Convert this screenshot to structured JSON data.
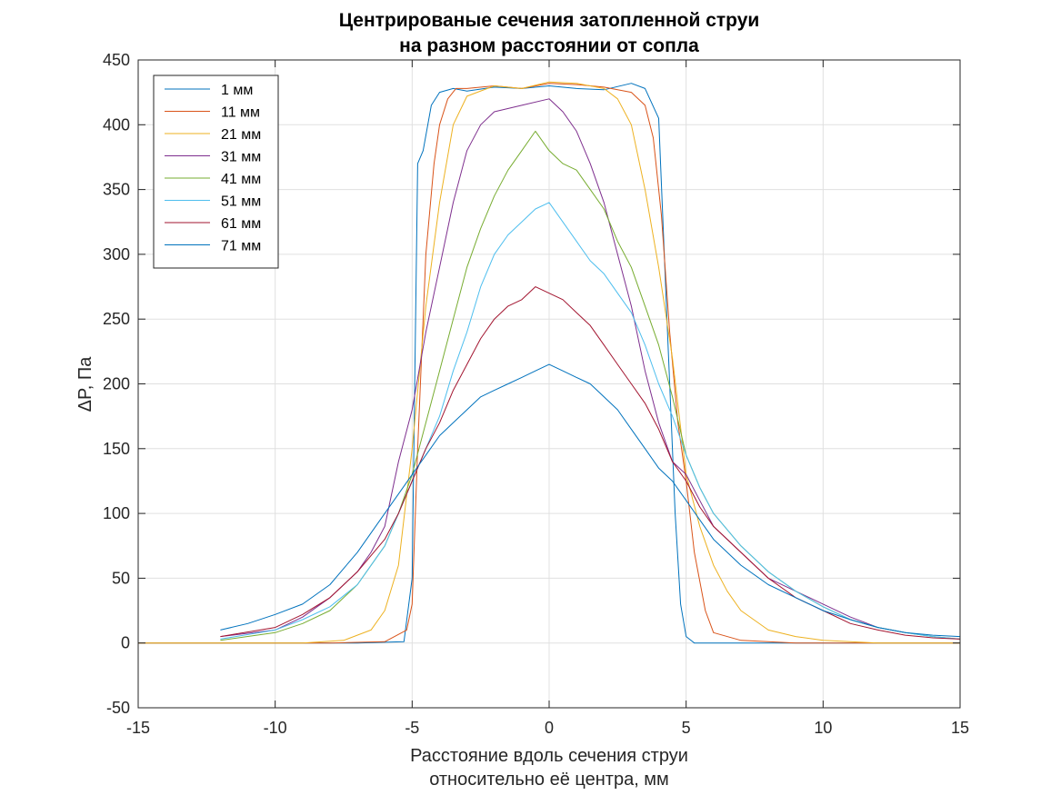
{
  "chart_data": {
    "type": "line",
    "title": [
      "Центрированые сечения затопленной струи",
      "на разном расстоянии от сопла"
    ],
    "xlabel": [
      "Расстояние вдоль сечения струи",
      "относительно её центра, мм"
    ],
    "ylabel": "ΔP, Па",
    "xlim": [
      -15,
      15
    ],
    "ylim": [
      -50,
      450
    ],
    "xticks": [
      -15,
      -10,
      -5,
      0,
      5,
      10,
      15
    ],
    "yticks": [
      -50,
      0,
      50,
      100,
      150,
      200,
      250,
      300,
      350,
      400,
      450
    ],
    "xtick_labels": [
      "-15",
      "-10",
      "-5",
      "0",
      "5",
      "10",
      "15"
    ],
    "ytick_labels": [
      "-50",
      "0",
      "50",
      "100",
      "150",
      "200",
      "250",
      "300",
      "350",
      "400",
      "450"
    ],
    "grid": true,
    "legend_position": "top-left",
    "series": [
      {
        "name": "1 мм",
        "color": "#0072BD",
        "x": [
          -15,
          -13,
          -11,
          -9,
          -7,
          -5.3,
          -5.0,
          -4.8,
          -4.6,
          -4.3,
          -4.0,
          -3.5,
          -3,
          -2,
          -1,
          0,
          1,
          2,
          3,
          3.5,
          4.0,
          4.3,
          4.6,
          4.8,
          5.0,
          5.3,
          7,
          9,
          11,
          13,
          15
        ],
        "y": [
          0,
          0,
          0,
          0,
          0,
          1,
          50,
          370,
          380,
          415,
          425,
          428,
          426,
          429,
          428,
          430,
          428,
          427,
          432,
          428,
          405,
          250,
          100,
          30,
          5,
          0,
          0,
          0,
          0,
          0,
          0
        ]
      },
      {
        "name": "11 мм",
        "color": "#D95319",
        "x": [
          -15,
          -11,
          -8,
          -6,
          -5.2,
          -5,
          -4.8,
          -4.5,
          -4.2,
          -4,
          -3.7,
          -3.4,
          -3,
          -2,
          -1,
          0,
          1,
          2,
          3,
          3.5,
          3.8,
          4.1,
          4.4,
          4.7,
          5,
          5.3,
          5.7,
          6,
          7,
          9,
          12,
          15
        ],
        "y": [
          0,
          0,
          0,
          1,
          10,
          30,
          150,
          300,
          370,
          400,
          420,
          428,
          428,
          430,
          428,
          432,
          431,
          429,
          425,
          415,
          390,
          330,
          240,
          170,
          125,
          70,
          25,
          8,
          2,
          0,
          0,
          0
        ]
      },
      {
        "name": "21 мм",
        "color": "#EDB120",
        "x": [
          -15,
          -11,
          -9,
          -7.5,
          -6.5,
          -6,
          -5.5,
          -5,
          -4.5,
          -4,
          -3.5,
          -3,
          -2,
          -1,
          0,
          1,
          2,
          2.5,
          3,
          3.5,
          4,
          4.5,
          5,
          5.5,
          6,
          6.5,
          7,
          8,
          9,
          10,
          12,
          15
        ],
        "y": [
          0,
          0,
          0,
          2,
          10,
          25,
          60,
          150,
          260,
          340,
          400,
          422,
          430,
          428,
          433,
          432,
          428,
          420,
          400,
          350,
          290,
          220,
          130,
          90,
          60,
          40,
          25,
          10,
          5,
          2,
          0,
          0
        ]
      },
      {
        "name": "31 мм",
        "color": "#7E2F8E",
        "x": [
          -12,
          -10,
          -9,
          -8,
          -7,
          -6.5,
          -6,
          -5.5,
          -5,
          -4.5,
          -4,
          -3.5,
          -3,
          -2.5,
          -2,
          -1,
          0,
          0.5,
          1,
          1.5,
          2,
          2.5,
          3,
          3.5,
          4,
          4.5,
          5,
          5.5,
          6,
          7,
          8,
          9,
          10,
          11,
          12,
          13
        ],
        "y": [
          5,
          10,
          20,
          35,
          55,
          70,
          90,
          140,
          180,
          240,
          290,
          340,
          380,
          400,
          410,
          415,
          420,
          410,
          395,
          370,
          340,
          300,
          260,
          210,
          170,
          140,
          130,
          110,
          90,
          70,
          50,
          40,
          30,
          20,
          12,
          8
        ]
      },
      {
        "name": "41 мм",
        "color": "#77AC30",
        "x": [
          -12,
          -10,
          -9,
          -8,
          -7,
          -6,
          -5.5,
          -5,
          -4.5,
          -4,
          -3.5,
          -3,
          -2.5,
          -2,
          -1.5,
          -1,
          -0.5,
          0,
          0.5,
          1,
          1.5,
          2,
          2.5,
          3,
          3.5,
          4,
          4.5,
          5,
          5.5,
          6,
          7,
          8,
          9,
          10,
          11,
          12,
          13,
          14,
          15
        ],
        "y": [
          2,
          8,
          15,
          25,
          45,
          75,
          100,
          130,
          170,
          210,
          250,
          290,
          320,
          345,
          365,
          380,
          395,
          380,
          370,
          365,
          350,
          335,
          310,
          290,
          260,
          230,
          190,
          145,
          120,
          100,
          75,
          55,
          40,
          28,
          18,
          12,
          8,
          5,
          3
        ]
      },
      {
        "name": "51 мм",
        "color": "#4DBEEE",
        "x": [
          -12,
          -10,
          -9,
          -8,
          -7,
          -6,
          -5.5,
          -5,
          -4.5,
          -4,
          -3.5,
          -3,
          -2.5,
          -2,
          -1.5,
          -1,
          -0.5,
          0,
          0.5,
          1,
          1.5,
          2,
          2.5,
          3,
          3.5,
          4,
          4.5,
          5,
          5.5,
          6,
          7,
          8,
          9,
          10,
          11,
          12,
          13,
          14,
          15
        ],
        "y": [
          3,
          10,
          18,
          28,
          45,
          75,
          100,
          125,
          150,
          175,
          210,
          240,
          275,
          300,
          315,
          325,
          335,
          340,
          325,
          310,
          295,
          285,
          270,
          255,
          230,
          200,
          175,
          145,
          120,
          100,
          75,
          55,
          40,
          28,
          18,
          12,
          8,
          5,
          3
        ]
      },
      {
        "name": "61 мм",
        "color": "#A2142F",
        "x": [
          -12,
          -10,
          -9,
          -8,
          -7,
          -6,
          -5.5,
          -5,
          -4.5,
          -4,
          -3.5,
          -3,
          -2.5,
          -2,
          -1.5,
          -1,
          -0.5,
          0,
          0.5,
          1,
          1.5,
          2,
          2.5,
          3,
          3.5,
          4,
          4.5,
          5,
          5.5,
          6,
          7,
          8,
          9,
          10,
          11,
          12,
          13,
          14,
          15
        ],
        "y": [
          5,
          12,
          22,
          35,
          55,
          80,
          100,
          125,
          150,
          170,
          195,
          215,
          235,
          250,
          260,
          265,
          275,
          270,
          265,
          255,
          245,
          230,
          215,
          200,
          185,
          165,
          140,
          125,
          105,
          90,
          70,
          50,
          35,
          25,
          15,
          10,
          6,
          4,
          3
        ]
      },
      {
        "name": "71 мм",
        "color": "#0072BD",
        "x": [
          -12,
          -11,
          -10,
          -9,
          -8,
          -7,
          -6,
          -5.5,
          -5,
          -4.5,
          -4,
          -3.5,
          -3,
          -2.5,
          -2,
          -1.5,
          -1,
          -0.5,
          0,
          0.5,
          1,
          1.5,
          2,
          2.5,
          3,
          3.5,
          4,
          4.5,
          5,
          5.5,
          6,
          7,
          8,
          9,
          10,
          11,
          12,
          13,
          14,
          15
        ],
        "y": [
          10,
          15,
          22,
          30,
          45,
          70,
          100,
          115,
          130,
          145,
          160,
          170,
          180,
          190,
          195,
          200,
          205,
          210,
          215,
          210,
          205,
          200,
          190,
          180,
          165,
          150,
          135,
          125,
          110,
          95,
          80,
          60,
          45,
          35,
          25,
          18,
          12,
          8,
          6,
          5
        ]
      }
    ]
  }
}
